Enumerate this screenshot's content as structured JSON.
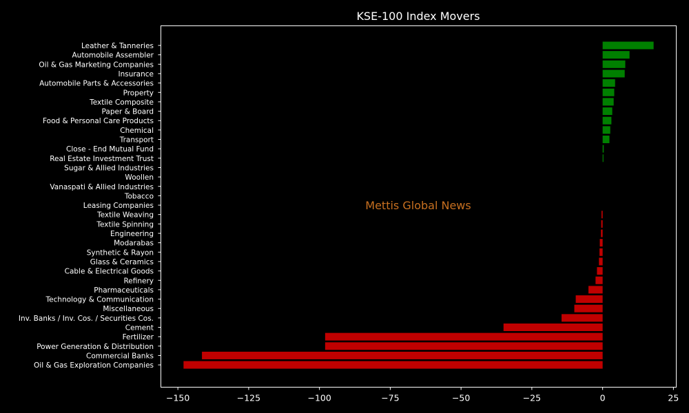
{
  "chart_data": {
    "type": "bar",
    "orientation": "horizontal",
    "title": "KSE-100 Index Movers",
    "watermark": "Mettis Global News",
    "xlim": [
      -156,
      26
    ],
    "xticks": [
      -150,
      -125,
      -100,
      -75,
      -50,
      -25,
      0,
      25
    ],
    "xtick_labels": [
      "−150",
      "−125",
      "−100",
      "−75",
      "−50",
      "−25",
      "0",
      "25"
    ],
    "xlabel": "",
    "ylabel": "",
    "grid": false,
    "colors": {
      "positive": "#008000",
      "negative": "#c00000",
      "background": "#000000",
      "text": "#ffffff",
      "watermark": "#c87020"
    },
    "categories": [
      "Leather & Tanneries",
      "Automobile Assembler",
      "Oil & Gas Marketing Companies",
      "Insurance",
      "Automobile Parts & Accessories",
      "Property",
      "Textile Composite",
      "Paper & Board",
      "Food & Personal Care Products",
      "Chemical",
      "Transport",
      "Close - End Mutual Fund",
      "Real Estate Investment Trust",
      "Sugar & Allied Industries",
      "Woollen",
      "Vanaspati & Allied Industries",
      "Tobacco",
      "Leasing Companies",
      "Textile Weaving",
      "Textile Spinning",
      "Engineering",
      "Modarabas",
      "Synthetic & Rayon",
      "Glass & Ceramics",
      "Cable & Electrical Goods",
      "Refinery",
      "Pharmaceuticals",
      "Technology & Communication",
      "Miscellaneous",
      "Inv. Banks / Inv. Cos. / Securities Cos.",
      "Cement",
      "Fertilizer",
      "Power Generation & Distribution",
      "Commercial Banks",
      "Oil & Gas Exploration Companies"
    ],
    "values": [
      18.0,
      9.5,
      8.0,
      7.8,
      4.4,
      4.1,
      3.9,
      3.4,
      3.1,
      2.7,
      2.4,
      0.4,
      0.3,
      0,
      0,
      0,
      0,
      0,
      -0.4,
      -0.5,
      -0.6,
      -1.0,
      -1.1,
      -1.3,
      -2.0,
      -2.5,
      -5.0,
      -9.5,
      -10.0,
      -14.5,
      -35.0,
      -98.0,
      -98.0,
      -141.5,
      -148.0
    ]
  }
}
